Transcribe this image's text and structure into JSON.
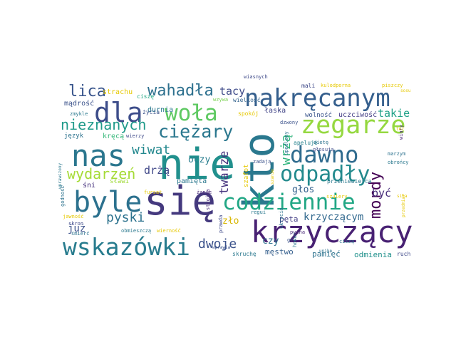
{
  "words": [
    {
      "text": "się",
      "color": "#44397e"
    },
    {
      "text": "nie",
      "color": "#21908d"
    },
    {
      "text": "kto",
      "color": "#2a788e"
    },
    {
      "text": "nas",
      "color": "#2a768e"
    },
    {
      "text": "krzyczący",
      "color": "#482173"
    },
    {
      "text": "byle",
      "color": "#2c718e"
    },
    {
      "text": "nakręcanym",
      "color": "#355f8d"
    },
    {
      "text": "wskazówki",
      "color": "#287c8e"
    },
    {
      "text": "codziennie",
      "color": "#22a785"
    },
    {
      "text": "zegarze",
      "color": "#95d840"
    },
    {
      "text": "dawno",
      "color": "#2f6b8e"
    },
    {
      "text": "dla",
      "color": "#3d4d8a"
    },
    {
      "text": "odpadły",
      "color": "#238a8d"
    },
    {
      "text": "woła",
      "color": "#5ec962"
    },
    {
      "text": "ciężary",
      "color": "#2a778e"
    },
    {
      "text": "mordy",
      "color": "#440154"
    },
    {
      "text": "wahadła",
      "color": "#2d708e"
    },
    {
      "text": "wydarzeń",
      "color": "#a5db36"
    },
    {
      "text": "nieznanych",
      "color": "#1f9a8a"
    },
    {
      "text": "wrżą",
      "color": "#2fb47c"
    },
    {
      "text": "twarze",
      "color": "#46337e"
    },
    {
      "text": "lica",
      "color": "#39558c"
    },
    {
      "text": "wiwat",
      "color": "#23888e"
    },
    {
      "text": "pyski",
      "color": "#2c728e"
    },
    {
      "text": "dwoje",
      "color": "#3b528b"
    },
    {
      "text": "krzyczącym",
      "color": "#31688e"
    },
    {
      "text": "drżą",
      "color": "#3f4788"
    },
    {
      "text": "tacy",
      "color": "#3e4a89"
    },
    {
      "text": "oczy",
      "color": "#287d8e"
    },
    {
      "text": "takie",
      "color": "#1fa187"
    },
    {
      "text": "być",
      "color": "#472c7a"
    },
    {
      "text": "głos",
      "color": "#34618d"
    },
    {
      "text": "już",
      "color": "#3b518b"
    },
    {
      "text": "czy",
      "color": "#2d708e"
    },
    {
      "text": "pamięta",
      "color": "#2a778e"
    },
    {
      "text": "zło",
      "color": "#fde725"
    },
    {
      "text": "pęta",
      "color": "#433e85"
    },
    {
      "text": "pamięć",
      "color": "#2c728e"
    },
    {
      "text": "odmienia",
      "color": "#21918c"
    },
    {
      "text": "męstwo",
      "color": "#355f8d"
    },
    {
      "text": "strachu",
      "color": "#fde725"
    },
    {
      "text": "mądrość",
      "color": "#3b528b"
    },
    {
      "text": "durnia",
      "color": "#2a788e"
    },
    {
      "text": "kręcą",
      "color": "#35b779"
    },
    {
      "text": "język",
      "color": "#2c728e"
    },
    {
      "text": "śni",
      "color": "#46327e"
    },
    {
      "text": "sławi",
      "color": "#a0da39"
    },
    {
      "text": "łaska",
      "color": "#414487"
    },
    {
      "text": "wolność",
      "color": "#3a548c"
    },
    {
      "text": "uczciwość",
      "color": "#433e85"
    },
    {
      "text": "spokój",
      "color": "#fde725"
    },
    {
      "text": "życia",
      "color": "#3b528b"
    },
    {
      "text": "szafot",
      "color": "#fde725"
    },
    {
      "text": "mali",
      "color": "#3e4989"
    },
    {
      "text": "kulodporna",
      "color": "#fde725"
    },
    {
      "text": "piszczy",
      "color": "#fde725"
    },
    {
      "text": "ciszę",
      "color": "#22a884"
    },
    {
      "text": "wielkość",
      "color": "#33638d"
    },
    {
      "text": "wzywa",
      "color": "#7ad151"
    },
    {
      "text": "dzwony",
      "color": "#3b528b"
    },
    {
      "text": "zmykle",
      "color": "#2a788e"
    },
    {
      "text": "wierzy",
      "color": "#3e4989"
    },
    {
      "text": "apeluje",
      "color": "#26828e"
    },
    {
      "text": "wiary",
      "color": "#482878"
    },
    {
      "text": "marzym",
      "color": "#2c728e"
    },
    {
      "text": "obrońcy",
      "color": "#2a788e"
    },
    {
      "text": "dietę",
      "color": "#2c728e"
    },
    {
      "text": "głosują",
      "color": "#3e4989"
    },
    {
      "text": "zadają",
      "color": "#3b528b"
    },
    {
      "text": "fursat",
      "color": "#fde725"
    },
    {
      "text": "żanie",
      "color": "#482878"
    },
    {
      "text": "regui",
      "color": "#2a788e"
    },
    {
      "text": "obmieszczą",
      "color": "#2a788e"
    },
    {
      "text": "wierność",
      "color": "#fde725"
    },
    {
      "text": "skron",
      "color": "#3e4989"
    },
    {
      "text": "śmierć",
      "color": "#2c728e"
    },
    {
      "text": "jawność",
      "color": "#fde725"
    },
    {
      "text": "pycha",
      "color": "#482878"
    },
    {
      "text": "gry",
      "color": "#3b528b"
    },
    {
      "text": "ciszą",
      "color": "#2c728e"
    },
    {
      "text": "ruch",
      "color": "#3e4989"
    },
    {
      "text": "skruchę",
      "color": "#2a788e"
    },
    {
      "text": "wprawia",
      "color": "#3b528b"
    },
    {
      "text": "przeniewierca",
      "color": "#2a788e"
    },
    {
      "text": "szulery",
      "color": "#fde725"
    },
    {
      "text": "siła",
      "color": "#fde725"
    },
    {
      "text": "wiasnych",
      "color": "#3e4989"
    },
    {
      "text": "godność",
      "color": "#2c728e"
    },
    {
      "text": "wprawszony",
      "color": "#2a788e"
    },
    {
      "text": "strojna",
      "color": "#482878"
    },
    {
      "text": "prawda",
      "color": "#3e4989"
    },
    {
      "text": "ukrycia",
      "color": "#2c728e"
    },
    {
      "text": "honor",
      "color": "#2a788e"
    },
    {
      "text": "upodlony",
      "color": "#2c728e"
    },
    {
      "text": "szanie",
      "color": "#fde725"
    },
    {
      "text": "przedmiar",
      "color": "#fde725"
    },
    {
      "text": "tez",
      "color": "#fde725"
    },
    {
      "text": "sosu",
      "color": "#fde725"
    },
    {
      "text": "unikę",
      "color": "#2c728e"
    }
  ]
}
